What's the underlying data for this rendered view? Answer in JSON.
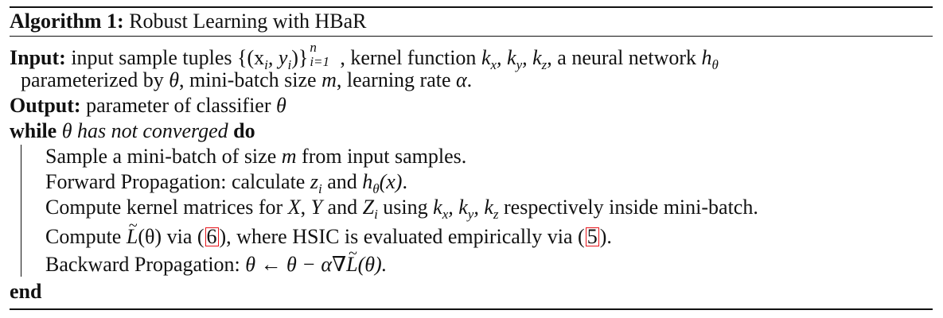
{
  "algorithm": {
    "label": "Algorithm 1:",
    "title": "Robust Learning with HBaR"
  },
  "input": {
    "label": "Input:",
    "text_1a": "input sample tuples",
    "tuples": "{(x",
    "tuples_sub_i": "i",
    "tuples_mid": ", y",
    "tuples_sub_i2": "i",
    "tuples_close": ")}",
    "tuples_sup": "n",
    "tuples_range": "i=1",
    "text_1b": ", kernel function",
    "kernels": "k",
    "k_x": "x",
    "k_y": "y",
    "k_z": "z",
    "text_1c": ", a neural network",
    "h": "h",
    "theta": "θ",
    "text_2a": "parameterized by",
    "text_2b": ", mini-batch size",
    "m": "m",
    "text_2c": ", learning rate",
    "alpha": "α",
    "text_2d": "."
  },
  "output": {
    "label": "Output:",
    "text": "parameter of classifier",
    "theta": "θ"
  },
  "loop": {
    "while": "while",
    "condition_theta": "θ",
    "condition": "has not converged",
    "do": "do",
    "end": "end"
  },
  "steps": {
    "s1a": "Sample a mini-batch of size",
    "s1m": "m",
    "s1b": "from input samples.",
    "s2a": "Forward Propagation: calculate",
    "s2z": "z",
    "s2zi": "i",
    "s2b": "and",
    "s2h": "h",
    "s2theta": "θ",
    "s2x": "(x)",
    "s2c": ".",
    "s3a": "Compute kernel matrices for",
    "s3X": "X",
    "s3c1": ",",
    "s3Y": "Y",
    "s3and": "and",
    "s3Z": "Z",
    "s3Zi": "i",
    "s3using": "using",
    "s3k": "k",
    "s3kx": "x",
    "s3ky": "y",
    "s3kz": "z",
    "s3b": "respectively inside mini-batch.",
    "s4a": "Compute",
    "s4L": "L",
    "s4theta": "(θ)",
    "s4via": "via (",
    "s4ref1": "6",
    "s4mid": "), where HSIC is evaluated empirically via (",
    "s4ref2": "5",
    "s4end": ").",
    "s5a": "Backward Propagation:",
    "s5expr1": "θ ← θ − α∇",
    "s5L": "L",
    "s5expr2": "(θ)."
  },
  "colors": {
    "text": "#111111",
    "ref_box": "#e8141b"
  }
}
